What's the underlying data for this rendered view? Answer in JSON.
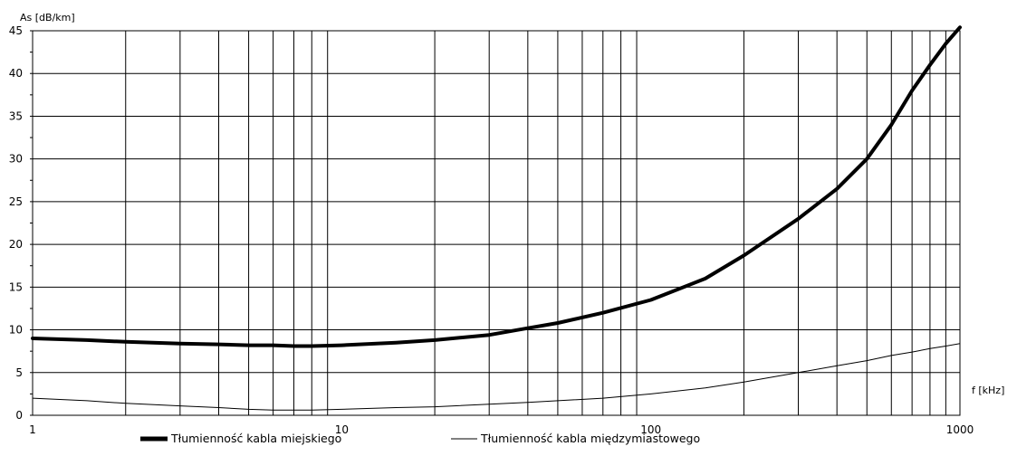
{
  "chart_data": {
    "type": "line",
    "title": "",
    "xlabel": "f [kHz]",
    "ylabel": "As [dB/km]",
    "x_scale": "log",
    "xlim": [
      1,
      1000
    ],
    "ylim": [
      0,
      45
    ],
    "grid": true,
    "legend_position": "bottom",
    "x_tick_labels": [
      "1",
      "10",
      "100",
      "1000"
    ],
    "y_tick_labels": [
      "0",
      "5",
      "10",
      "15",
      "20",
      "25",
      "30",
      "35",
      "40",
      "45"
    ],
    "series": [
      {
        "name": "Tłumienność kabla miejskiego",
        "color": "#000000",
        "style": "thick",
        "x": [
          1,
          1.5,
          2,
          3,
          4,
          5,
          6,
          7,
          8,
          10,
          15,
          20,
          30,
          40,
          50,
          70,
          100,
          150,
          200,
          300,
          400,
          500,
          600,
          700,
          800,
          900,
          1000
        ],
        "y": [
          9.0,
          8.8,
          8.6,
          8.4,
          8.3,
          8.2,
          8.2,
          8.1,
          8.1,
          8.2,
          8.5,
          8.8,
          9.4,
          10.2,
          10.8,
          12.0,
          13.5,
          16.0,
          18.7,
          23.0,
          26.5,
          30.0,
          34.0,
          38.0,
          41.0,
          43.5,
          45.5
        ]
      },
      {
        "name": "Tłumienność kabla międzymiastowego",
        "color": "#000000",
        "style": "thin",
        "x": [
          1,
          1.5,
          2,
          3,
          4,
          5,
          6,
          7,
          8,
          10,
          15,
          20,
          30,
          40,
          50,
          70,
          100,
          150,
          200,
          300,
          400,
          500,
          600,
          700,
          800,
          900,
          1000
        ],
        "y": [
          2.0,
          1.7,
          1.4,
          1.1,
          0.9,
          0.7,
          0.6,
          0.6,
          0.6,
          0.7,
          0.9,
          1.0,
          1.3,
          1.5,
          1.7,
          2.0,
          2.5,
          3.2,
          3.9,
          5.0,
          5.8,
          6.4,
          7.0,
          7.4,
          7.8,
          8.1,
          8.4
        ]
      }
    ]
  }
}
